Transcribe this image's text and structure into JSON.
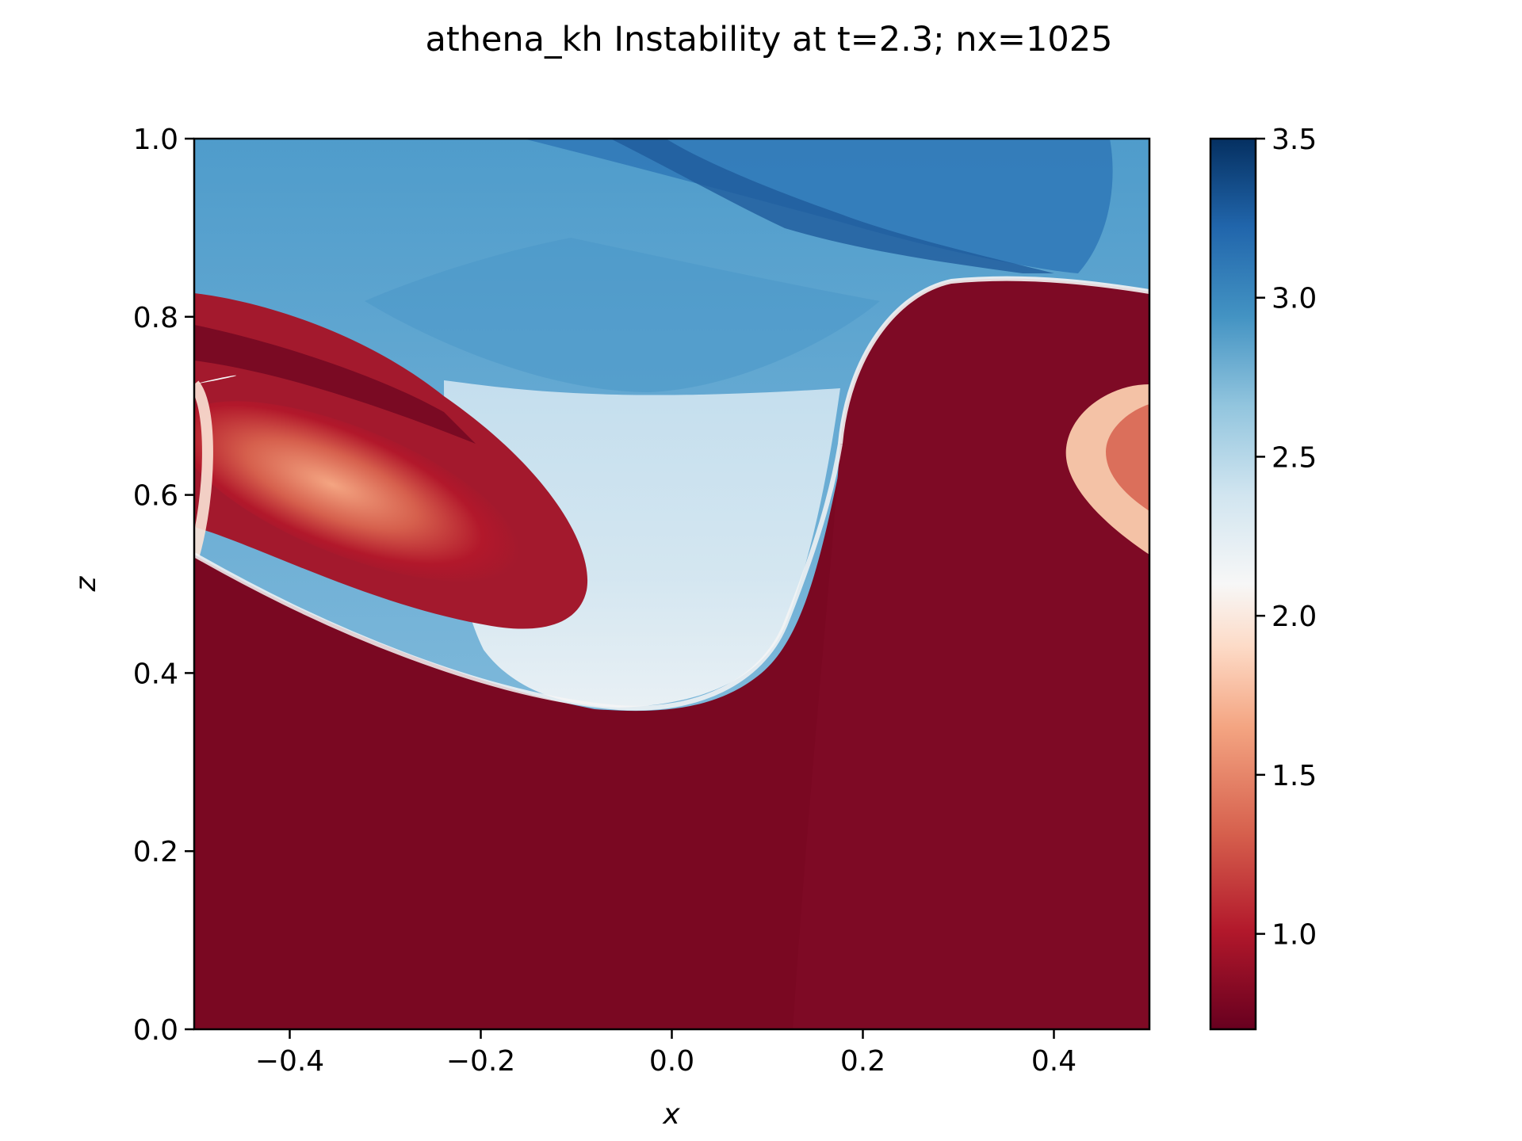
{
  "chart_data": {
    "type": "heatmap",
    "title": "athena_kh Instability at t=2.3; nx=1025",
    "xlabel": "x",
    "ylabel": "z",
    "xlim": [
      -0.5,
      0.5
    ],
    "ylim": [
      0.0,
      1.0
    ],
    "xticks": [
      -0.4,
      -0.2,
      0.0,
      0.2,
      0.4
    ],
    "xtick_labels": [
      "−0.4",
      "−0.2",
      "0.0",
      "0.2",
      "0.4"
    ],
    "yticks": [
      0.0,
      0.2,
      0.4,
      0.6,
      0.8,
      1.0
    ],
    "ytick_labels": [
      "0.0",
      "0.2",
      "0.4",
      "0.6",
      "0.8",
      "1.0"
    ],
    "colormap": "RdBu",
    "colorbar": {
      "range": [
        0.7,
        3.5
      ],
      "ticks": [
        1.0,
        1.5,
        2.0,
        2.5,
        3.0,
        3.5
      ],
      "tick_labels": [
        "1.0",
        "1.5",
        "2.0",
        "2.5",
        "3.0",
        "3.5"
      ]
    },
    "grid": false,
    "field_regions": [
      {
        "name": "background_dense_lower",
        "value": 0.85
      },
      {
        "name": "upper_light_layer",
        "value": 2.9
      },
      {
        "name": "interface_white",
        "value": 2.1
      },
      {
        "name": "left_vortex_core",
        "value": 1.5
      },
      {
        "name": "right_vortex_core",
        "value": 1.6
      },
      {
        "name": "top_dark_arc",
        "value": 3.2
      }
    ]
  }
}
